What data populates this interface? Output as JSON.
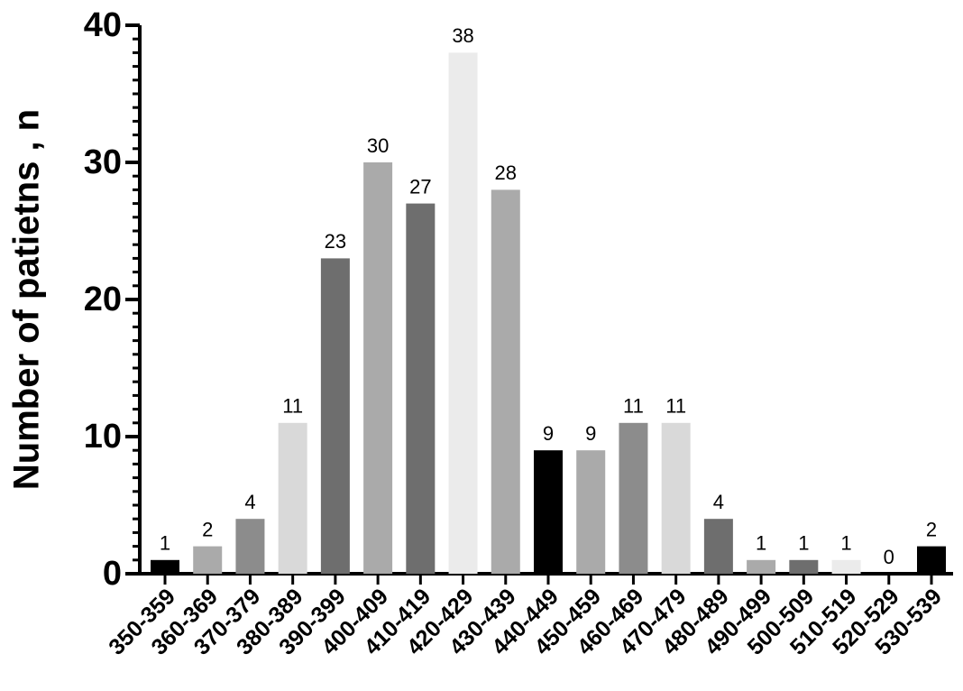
{
  "chart_data": {
    "type": "bar",
    "ylabel": "Number of patietns , n",
    "categories": [
      "350-359",
      "360-369",
      "370-379",
      "380-389",
      "390-399",
      "400-409",
      "410-419",
      "420-429",
      "430-439",
      "440-449",
      "450-459",
      "460-469",
      "470-479",
      "480-489",
      "490-499",
      "500-509",
      "510-519",
      "520-529",
      "530-539"
    ],
    "values": [
      1,
      2,
      4,
      11,
      23,
      30,
      27,
      38,
      28,
      9,
      9,
      11,
      11,
      4,
      1,
      1,
      1,
      0,
      2
    ],
    "colors": [
      "#000000",
      "#aaaaaa",
      "#8c8c8c",
      "#d9d9d9",
      "#6e6e6e",
      "#aaaaaa",
      "#6e6e6e",
      "#ebebeb",
      "#aaaaaa",
      "#000000",
      "#aaaaaa",
      "#8c8c8c",
      "#d9d9d9",
      "#6e6e6e",
      "#aaaaaa",
      "#6e6e6e",
      "#ebebeb",
      "#ebebeb",
      "#000000"
    ],
    "ylim": [
      0,
      40
    ],
    "yticks": [
      0,
      10,
      20,
      30,
      40
    ],
    "minor_tick_interval": 1,
    "grid": false
  }
}
